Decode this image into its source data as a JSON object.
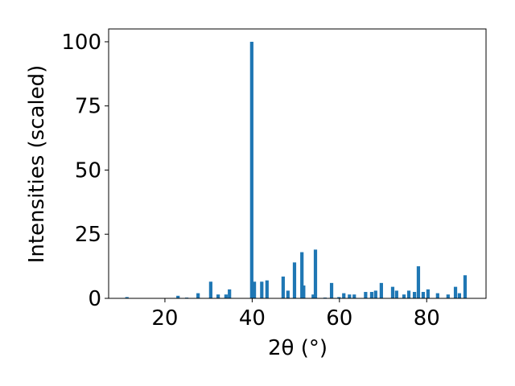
{
  "chart_data": {
    "type": "bar",
    "x_label": "2θ (°)",
    "y_label": "Intensities (scaled)",
    "x": [
      11.3,
      23.0,
      25.0,
      27.6,
      30.5,
      32.2,
      34.0,
      34.8,
      39.9,
      40.5,
      42.2,
      43.4,
      47.1,
      48.2,
      49.7,
      51.4,
      51.8,
      54.0,
      54.5,
      56.7,
      58.2,
      59.9,
      61.0,
      62.3,
      63.4,
      66.0,
      67.4,
      68.3,
      69.6,
      72.2,
      73.1,
      74.8,
      75.9,
      77.2,
      78.1,
      79.2,
      80.3,
      82.5,
      84.9,
      86.6,
      87.5,
      88.8
    ],
    "values": [
      0.5,
      1,
      0.3,
      2,
      6.5,
      1.5,
      1.5,
      3.5,
      100,
      6.5,
      6.5,
      7,
      8.5,
      3,
      14,
      18,
      5,
      1.5,
      19,
      0.3,
      6,
      0.5,
      2,
      1.5,
      1.5,
      2.5,
      2.5,
      3,
      6,
      4.5,
      3,
      1.5,
      3,
      2.5,
      12.5,
      2.5,
      3.5,
      2,
      1.5,
      4.5,
      2,
      9
    ],
    "color": "#1f77b4",
    "xlim": [
      7.1,
      93.6
    ],
    "xticks": [
      20,
      40,
      60,
      80
    ],
    "ylim": [
      0,
      105
    ],
    "yticks": [
      0,
      25,
      50,
      75,
      100
    ]
  }
}
